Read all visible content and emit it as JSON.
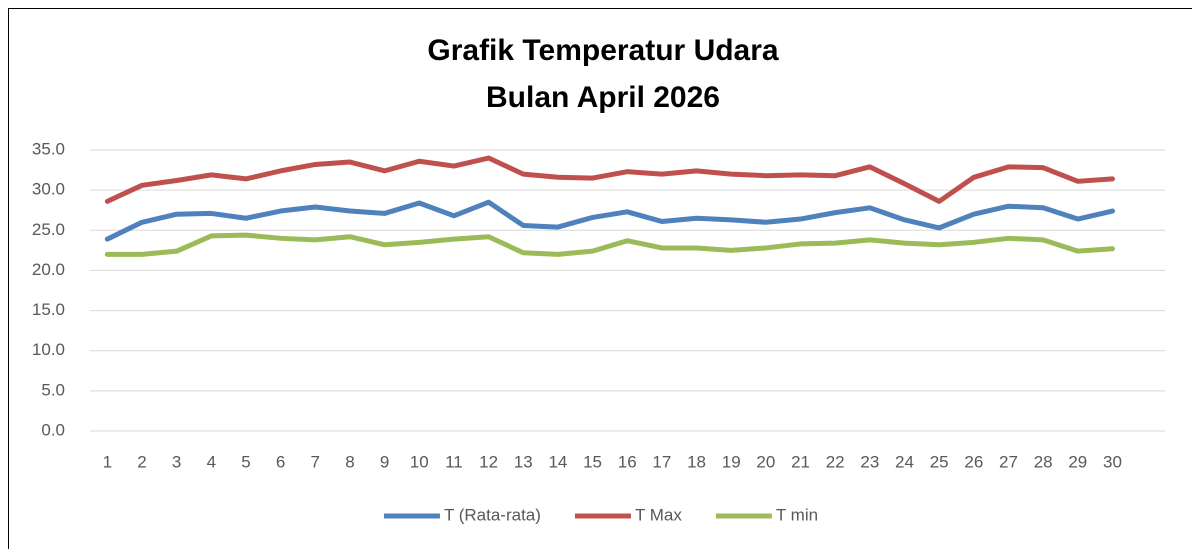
{
  "chart_data": {
    "type": "line",
    "title": "Grafik Temperatur Udara",
    "subtitle": "Bulan April 2026",
    "categories": [
      "1",
      "2",
      "3",
      "4",
      "5",
      "6",
      "7",
      "8",
      "9",
      "10",
      "11",
      "12",
      "13",
      "14",
      "15",
      "16",
      "17",
      "18",
      "19",
      "20",
      "21",
      "22",
      "23",
      "24",
      "25",
      "26",
      "27",
      "28",
      "29",
      "30"
    ],
    "series": [
      {
        "name": "T (Rata-rata)",
        "color": "#4f81bd",
        "values": [
          23.9,
          26.0,
          27.0,
          27.1,
          26.5,
          27.4,
          27.9,
          27.4,
          27.1,
          28.4,
          26.8,
          28.5,
          25.6,
          25.4,
          26.6,
          27.3,
          26.1,
          26.5,
          26.3,
          26.0,
          26.4,
          27.2,
          27.8,
          26.3,
          25.3,
          27.0,
          28.0,
          27.8,
          26.4,
          27.4
        ]
      },
      {
        "name": "T Max",
        "color": "#c0504d",
        "values": [
          28.6,
          30.6,
          31.2,
          31.9,
          31.4,
          32.4,
          33.2,
          33.5,
          32.4,
          33.6,
          33.0,
          34.0,
          32.0,
          31.6,
          31.5,
          32.3,
          32.0,
          32.4,
          32.0,
          31.8,
          31.9,
          31.8,
          32.9,
          30.8,
          28.6,
          31.6,
          32.9,
          32.8,
          31.1,
          31.4
        ]
      },
      {
        "name": "T min",
        "color": "#9bbb59",
        "values": [
          22.0,
          22.0,
          22.4,
          24.3,
          24.4,
          24.0,
          23.8,
          24.2,
          23.2,
          23.5,
          23.9,
          24.2,
          22.2,
          22.0,
          22.4,
          23.7,
          22.8,
          22.8,
          22.5,
          22.8,
          23.3,
          23.4,
          23.8,
          23.4,
          23.2,
          23.5,
          24.0,
          23.8,
          22.4,
          22.7
        ]
      }
    ],
    "ylim": [
      0,
      35
    ],
    "yticks": [
      {
        "value": 0,
        "label": "0.0"
      },
      {
        "value": 5,
        "label": "5.0"
      },
      {
        "value": 10,
        "label": "10.0"
      },
      {
        "value": 15,
        "label": "15.0"
      },
      {
        "value": 20,
        "label": "20.0"
      },
      {
        "value": 25,
        "label": "25.0"
      },
      {
        "value": 30,
        "label": "30.0"
      },
      {
        "value": 35,
        "label": "35.0"
      }
    ],
    "grid": true,
    "legend": "bottom"
  }
}
